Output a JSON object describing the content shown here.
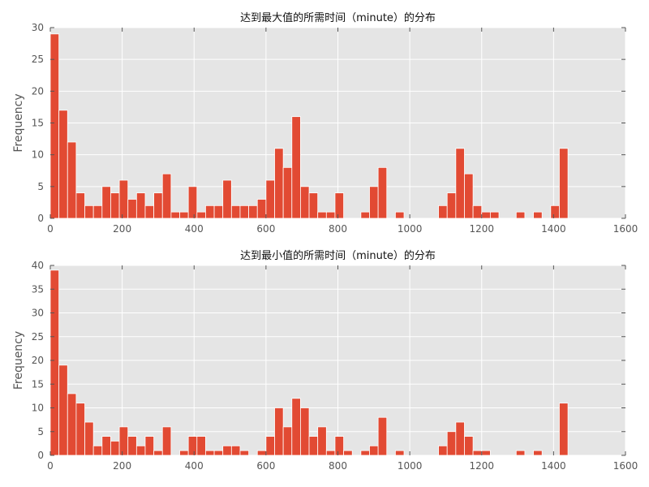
{
  "chart_data": [
    {
      "type": "bar",
      "title": "达到最大值的所需时间（minute）的分布",
      "xlabel": "",
      "ylabel": "Frequency",
      "xlim": [
        0,
        1600
      ],
      "ylim": [
        0,
        30
      ],
      "bin_width": 24,
      "xticks": [
        0,
        200,
        400,
        600,
        800,
        1000,
        1200,
        1400,
        1600
      ],
      "yticks": [
        0,
        5,
        10,
        15,
        20,
        25,
        30
      ],
      "grid": true,
      "bins_start": [
        0,
        24,
        48,
        72,
        96,
        120,
        144,
        168,
        192,
        216,
        240,
        264,
        288,
        312,
        336,
        360,
        384,
        408,
        432,
        456,
        480,
        504,
        528,
        552,
        576,
        600,
        624,
        648,
        672,
        696,
        720,
        744,
        768,
        792,
        816,
        840,
        864,
        888,
        912,
        936,
        960,
        984,
        1008,
        1032,
        1056,
        1080,
        1104,
        1128,
        1152,
        1176,
        1200,
        1224,
        1248,
        1272,
        1296,
        1320,
        1344,
        1368,
        1392,
        1416
      ],
      "values": [
        29,
        17,
        12,
        4,
        2,
        2,
        5,
        4,
        6,
        3,
        4,
        2,
        4,
        7,
        1,
        1,
        5,
        1,
        2,
        2,
        6,
        2,
        2,
        2,
        3,
        6,
        11,
        8,
        16,
        5,
        4,
        1,
        1,
        4,
        0,
        0,
        1,
        5,
        8,
        0,
        1,
        0,
        0,
        0,
        0,
        2,
        4,
        11,
        7,
        2,
        1,
        1,
        0,
        0,
        1,
        0,
        1,
        0,
        2,
        11
      ]
    },
    {
      "type": "bar",
      "title": "达到最小值的所需时间（minute）的分布",
      "xlabel": "",
      "ylabel": "Frequency",
      "xlim": [
        0,
        1600
      ],
      "ylim": [
        0,
        40
      ],
      "bin_width": 24,
      "xticks": [
        0,
        200,
        400,
        600,
        800,
        1000,
        1200,
        1400,
        1600
      ],
      "yticks": [
        0,
        5,
        10,
        15,
        20,
        25,
        30,
        35,
        40
      ],
      "grid": true,
      "bins_start": [
        0,
        24,
        48,
        72,
        96,
        120,
        144,
        168,
        192,
        216,
        240,
        264,
        288,
        312,
        336,
        360,
        384,
        408,
        432,
        456,
        480,
        504,
        528,
        552,
        576,
        600,
        624,
        648,
        672,
        696,
        720,
        744,
        768,
        792,
        816,
        840,
        864,
        888,
        912,
        936,
        960,
        984,
        1008,
        1032,
        1056,
        1080,
        1104,
        1128,
        1152,
        1176,
        1200,
        1224,
        1248,
        1272,
        1296,
        1320,
        1344,
        1368,
        1392,
        1416
      ],
      "values": [
        39,
        19,
        13,
        11,
        7,
        2,
        4,
        3,
        6,
        4,
        2,
        4,
        1,
        6,
        0,
        1,
        4,
        4,
        1,
        1,
        2,
        2,
        1,
        0,
        1,
        4,
        10,
        6,
        12,
        10,
        4,
        6,
        1,
        4,
        1,
        0,
        1,
        2,
        8,
        0,
        1,
        0,
        0,
        0,
        0,
        2,
        5,
        7,
        4,
        1,
        1,
        0,
        0,
        0,
        1,
        0,
        1,
        0,
        0,
        11
      ]
    }
  ]
}
